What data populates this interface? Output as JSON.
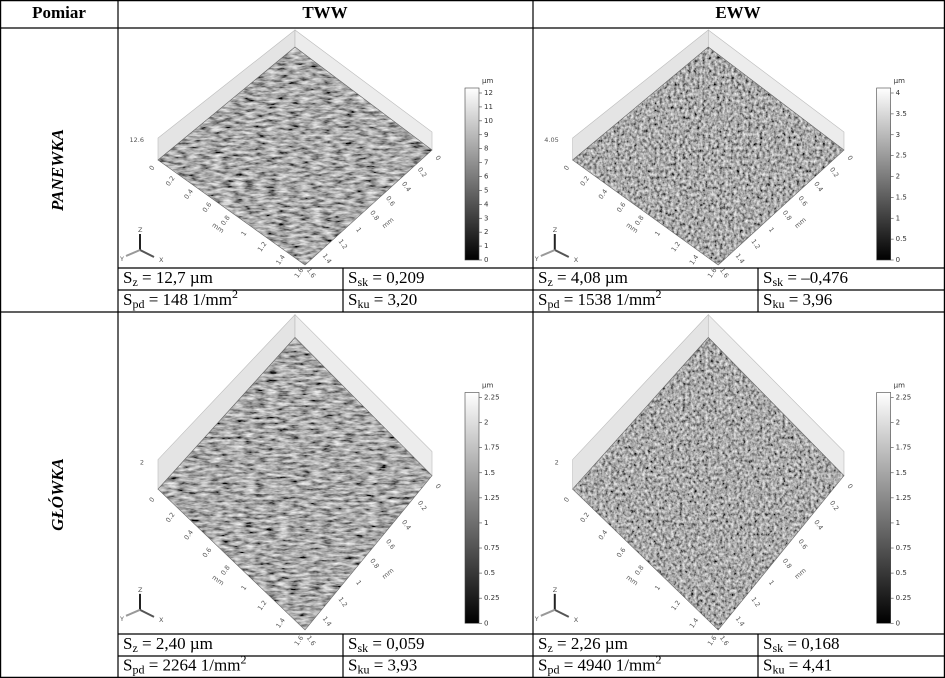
{
  "header": {
    "measure": "Pomiar",
    "left": "TWW",
    "right": "EWW"
  },
  "surface_axis": {
    "ticks": [
      "0",
      "0.2",
      "0.4",
      "0.6",
      "0.8",
      "1",
      "1.2",
      "1.4",
      "1.6"
    ],
    "unit": "mm",
    "triad": [
      "X",
      "Y",
      "Z"
    ]
  },
  "rows": [
    {
      "label": "PANEWKA",
      "surfaces": [
        {
          "max_label": "12.6",
          "unit": "µm",
          "scale": [
            "12",
            "11",
            "10",
            "9",
            "8",
            "7",
            "6",
            "5",
            "4",
            "3",
            "2",
            "1",
            "0"
          ]
        },
        {
          "max_label": "4.05",
          "unit": "µm",
          "scale": [
            "4",
            "3.5",
            "3",
            "2.5",
            "2",
            "1.5",
            "1",
            "0.5",
            "0"
          ]
        }
      ],
      "params": [
        [
          {
            "sym": "S",
            "sub": "z",
            "rest": " = 12,7 µm"
          },
          {
            "sym": "S",
            "sub": "sk",
            "rest": " = 0,209"
          },
          {
            "sym": "S",
            "sub": "pd",
            "rest": " = 148 1/mm",
            "sup": "2"
          },
          {
            "sym": "S",
            "sub": "ku",
            "rest": " = 3,20"
          }
        ],
        [
          {
            "sym": "S",
            "sub": "z",
            "rest": " = 4,08 µm"
          },
          {
            "sym": "S",
            "sub": "sk",
            "rest": " = –0,476"
          },
          {
            "sym": "S",
            "sub": "pd",
            "rest": " = 1538 1/mm",
            "sup": "2"
          },
          {
            "sym": "S",
            "sub": "ku",
            "rest": " = 3,96"
          }
        ]
      ]
    },
    {
      "label": "GŁÓWKA",
      "surfaces": [
        {
          "max_label": "2",
          "unit": "µm",
          "scale": [
            "2.25",
            "2",
            "1.75",
            "1.5",
            "1.25",
            "1",
            "0.75",
            "0.5",
            "0.25",
            "0"
          ]
        },
        {
          "max_label": "2",
          "unit": "µm",
          "scale": [
            "2.25",
            "2",
            "1.75",
            "1.5",
            "1.25",
            "1",
            "0.75",
            "0.5",
            "0.25",
            "0"
          ]
        }
      ],
      "params": [
        [
          {
            "sym": "S",
            "sub": "z",
            "rest": " = 2,40 µm"
          },
          {
            "sym": "S",
            "sub": "sk",
            "rest": " = 0,059"
          },
          {
            "sym": "S",
            "sub": "pd",
            "rest": " = 2264 1/mm",
            "sup": "2"
          },
          {
            "sym": "S",
            "sub": "ku",
            "rest": " = 3,93"
          }
        ],
        [
          {
            "sym": "S",
            "sub": "z",
            "rest": " = 2,26 µm"
          },
          {
            "sym": "S",
            "sub": "sk",
            "rest": " = 0,168"
          },
          {
            "sym": "S",
            "sub": "pd",
            "rest": " = 4940 1/mm",
            "sup": "2"
          },
          {
            "sym": "S",
            "sub": "ku",
            "rest": " = 4,41"
          }
        ]
      ]
    }
  ]
}
